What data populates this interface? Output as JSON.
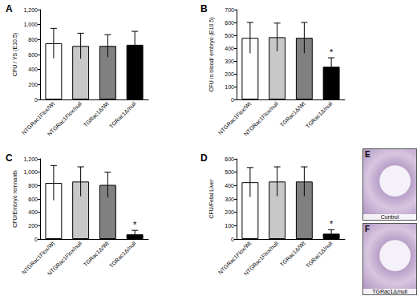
{
  "chart_data": [
    {
      "panel": "A",
      "type": "bar",
      "ylabel": "CFU / YS (E10.5)",
      "categories": [
        "NTGRac1Flox/Wt",
        "NTGRac1Flox/null",
        "TGRac1Δ/Wt",
        "TGRac1Δ/null"
      ],
      "values": [
        750,
        715,
        715,
        730
      ],
      "errors": [
        200,
        170,
        150,
        180
      ],
      "colors": [
        "#ffffff",
        "#c8c8c8",
        "#808080",
        "#000000"
      ],
      "significant": [
        false,
        false,
        false,
        false
      ],
      "significance_mark": "*",
      "ylim": [
        0,
        1200
      ],
      "yticks": [
        0,
        200,
        400,
        600,
        800,
        1000,
        1200
      ]
    },
    {
      "panel": "B",
      "type": "bar",
      "ylabel": "CFU in blood/ embryo (E10.5)",
      "categories": [
        "NTGRac1Flox/Wt",
        "NTGRac1Flox/null",
        "TGRac1Δ/Wt",
        "TGRac1Δ/null"
      ],
      "values": [
        480,
        485,
        480,
        255
      ],
      "errors": [
        120,
        110,
        120,
        70
      ],
      "colors": [
        "#ffffff",
        "#c8c8c8",
        "#808080",
        "#000000"
      ],
      "significant": [
        false,
        false,
        false,
        true
      ],
      "significance_mark": "*",
      "ylim": [
        0,
        700
      ],
      "yticks": [
        0,
        100,
        200,
        300,
        400,
        500,
        600,
        700
      ]
    },
    {
      "panel": "C",
      "type": "bar",
      "ylabel": "CFU/Embryo remnants",
      "categories": [
        "NTGRac1Flox/Wt",
        "NTGRac1Flox/null",
        "TGRac1Δ/Wt",
        "TGRac1Δ/null"
      ],
      "values": [
        840,
        860,
        810,
        70
      ],
      "errors": [
        260,
        220,
        190,
        60
      ],
      "colors": [
        "#ffffff",
        "#c8c8c8",
        "#808080",
        "#000000"
      ],
      "significant": [
        false,
        false,
        false,
        true
      ],
      "significance_mark": "*",
      "ylim": [
        0,
        1200
      ],
      "yticks": [
        0,
        200,
        400,
        600,
        800,
        1000,
        1200
      ]
    },
    {
      "panel": "D",
      "type": "bar",
      "ylabel": "CFU/Fetal Liver",
      "categories": [
        "NTGRac1Flox/Wt",
        "NTGRac1Flox/null",
        "TGRac1Δ/Wt",
        "TGRac1Δ/null"
      ],
      "values": [
        425,
        430,
        430,
        40
      ],
      "errors": [
        110,
        110,
        110,
        30
      ],
      "colors": [
        "#ffffff",
        "#c8c8c8",
        "#808080",
        "#000000"
      ],
      "significant": [
        false,
        false,
        false,
        true
      ],
      "significance_mark": "*",
      "ylim": [
        0,
        600
      ],
      "yticks": [
        0,
        100,
        200,
        300,
        400,
        500,
        600
      ]
    }
  ],
  "images": [
    {
      "panel": "E",
      "caption": "Control"
    },
    {
      "panel": "F",
      "caption": "TGRac1Δ/null"
    }
  ]
}
